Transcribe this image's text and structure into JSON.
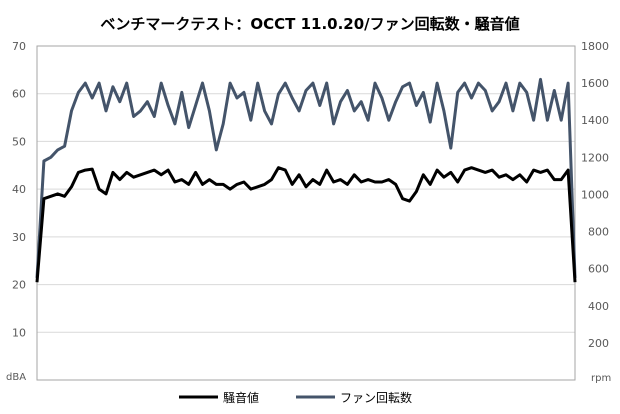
{
  "chart_data": {
    "type": "line",
    "title": "ベンチマークテスト：OCCT 11.0.20/ファン回転数・騒音値",
    "left_axis": {
      "unit": "dBA",
      "ylim": [
        0,
        70
      ],
      "ticks": [
        "0",
        "10",
        "20",
        "30",
        "40",
        "50",
        "60",
        "70"
      ]
    },
    "right_axis": {
      "unit": "rpm",
      "ylim": [
        0,
        1800
      ],
      "ticks": [
        "0",
        "200",
        "400",
        "600",
        "800",
        "1000",
        "1200",
        "1400",
        "1600",
        "1800"
      ]
    },
    "x_axis_labels": "none",
    "grid": "horizontal",
    "legend_position": "bottom",
    "series": [
      {
        "name": "騒音値",
        "axis": "left",
        "color": "#000000",
        "values": [
          20.5,
          38.0,
          38.5,
          39.0,
          38.5,
          40.5,
          43.5,
          44.0,
          44.2,
          40.0,
          39.0,
          43.5,
          42.0,
          43.5,
          42.5,
          43.0,
          43.5,
          44.0,
          43.0,
          44.0,
          41.5,
          42.0,
          41.0,
          43.5,
          41.0,
          42.0,
          41.0,
          41.0,
          40.0,
          41.0,
          41.5,
          40.0,
          40.5,
          41.0,
          42.0,
          44.5,
          44.0,
          41.0,
          43.0,
          40.5,
          42.0,
          41.0,
          44.0,
          41.5,
          42.0,
          41.0,
          43.0,
          41.5,
          42.0,
          41.5,
          41.5,
          42.0,
          41.0,
          38.0,
          37.5,
          39.5,
          43.0,
          41.0,
          44.0,
          42.5,
          43.5,
          41.5,
          44.0,
          44.5,
          44.0,
          43.5,
          44.0,
          42.5,
          43.0,
          42.0,
          43.0,
          41.5,
          44.0,
          43.5,
          44.0,
          42.0,
          42.0,
          44.0,
          20.5
        ]
      },
      {
        "name": "ファン回転数",
        "axis": "right",
        "color": "#44546A",
        "values": [
          550,
          1180,
          1200,
          1240,
          1260,
          1450,
          1550,
          1600,
          1520,
          1600,
          1450,
          1580,
          1500,
          1600,
          1420,
          1450,
          1500,
          1420,
          1600,
          1480,
          1380,
          1550,
          1360,
          1480,
          1600,
          1450,
          1240,
          1380,
          1600,
          1520,
          1550,
          1400,
          1600,
          1450,
          1380,
          1540,
          1600,
          1520,
          1450,
          1560,
          1600,
          1480,
          1600,
          1380,
          1500,
          1560,
          1450,
          1500,
          1400,
          1600,
          1520,
          1400,
          1500,
          1580,
          1600,
          1480,
          1550,
          1390,
          1600,
          1450,
          1250,
          1550,
          1600,
          1520,
          1600,
          1560,
          1450,
          1500,
          1600,
          1450,
          1600,
          1550,
          1400,
          1620,
          1400,
          1560,
          1400,
          1600,
          550
        ]
      }
    ]
  }
}
